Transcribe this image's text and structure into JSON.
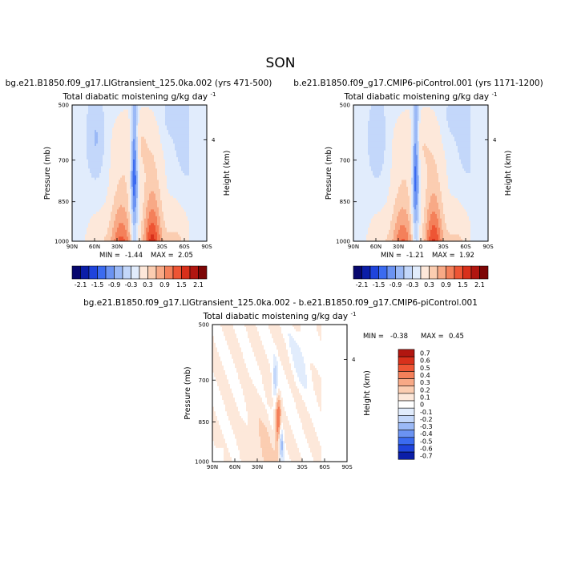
{
  "figure": {
    "season": "SON",
    "palette": {
      "neg": [
        "#08086e",
        "#0b1ea8",
        "#1f44dc",
        "#3b6bf0",
        "#6b93f2",
        "#9bb9f6",
        "#c3d7fa",
        "#e1ecfc"
      ],
      "pos": [
        "#fde8da",
        "#fbcdb1",
        "#f8a986",
        "#f4805a",
        "#ee5534",
        "#d8301b",
        "#b11610",
        "#7d0606"
      ],
      "zero": "#ffffff"
    }
  },
  "chart_data": [
    {
      "type": "heatmap",
      "id": "lig",
      "title": "bg.e21.B1850.f09_g17.LIGtransient_125.0ka.002 (yrs 471-500)",
      "subtitle": "Total diabatic moistening",
      "units": "g/kg day",
      "units_exp": "-1",
      "xlabel": "",
      "ylabel": "Pressure (mb)",
      "y2label": "Height (km)",
      "x_ticks": [
        "90N",
        "60N",
        "30N",
        "0",
        "30S",
        "60S",
        "90S"
      ],
      "y_ticks": [
        500,
        700,
        850,
        1000
      ],
      "y2_ticks": [
        4
      ],
      "ylim": [
        1000,
        500
      ],
      "min_label": "MIN =",
      "max_label": "MAX =",
      "min": -1.44,
      "max": 2.05,
      "colorbar": {
        "orientation": "horizontal",
        "labels": [
          "-2.1",
          "-1.5",
          "-0.9",
          "-0.3",
          "0.3",
          "0.9",
          "1.5",
          "2.1"
        ]
      }
    },
    {
      "type": "heatmap",
      "id": "ctrl",
      "title": "b.e21.B1850.f09_g17.CMIP6-piControl.001 (yrs 1171-1200)",
      "subtitle": "Total diabatic moistening",
      "units": "g/kg day",
      "units_exp": "-1",
      "xlabel": "",
      "ylabel": "Pressure (mb)",
      "y2label": "Height (km)",
      "x_ticks": [
        "90N",
        "60N",
        "30N",
        "0",
        "30S",
        "60S",
        "90S"
      ],
      "y_ticks": [
        500,
        700,
        850,
        1000
      ],
      "y2_ticks": [
        4
      ],
      "ylim": [
        1000,
        500
      ],
      "min_label": "MIN =",
      "max_label": "MAX =",
      "min": -1.21,
      "max": 1.92,
      "colorbar": {
        "orientation": "horizontal",
        "labels": [
          "-2.1",
          "-1.5",
          "-0.9",
          "-0.3",
          "0.3",
          "0.9",
          "1.5",
          "2.1"
        ]
      }
    },
    {
      "type": "heatmap",
      "id": "diff",
      "title": "bg.e21.B1850.f09_g17.LIGtransient_125.0ka.002 - b.e21.B1850.f09_g17.CMIP6-piControl.001",
      "subtitle": "Total diabatic moistening",
      "units": "g/kg day",
      "units_exp": "-1",
      "xlabel": "",
      "ylabel": "Pressure (mb)",
      "y2label": "Height (km)",
      "x_ticks": [
        "90N",
        "60N",
        "30N",
        "0",
        "30S",
        "60S",
        "90S"
      ],
      "y_ticks": [
        500,
        700,
        850,
        1000
      ],
      "y2_ticks": [
        4
      ],
      "ylim": [
        1000,
        500
      ],
      "min_label": "MIN =",
      "max_label": "MAX =",
      "min": -0.38,
      "max": 0.45,
      "colorbar": {
        "orientation": "vertical",
        "labels": [
          "0.7",
          "0.6",
          "0.5",
          "0.4",
          "0.3",
          "0.2",
          "0.1",
          "0",
          "-0.1",
          "-0.2",
          "-0.3",
          "-0.4",
          "-0.5",
          "-0.6",
          "-0.7"
        ]
      }
    }
  ]
}
